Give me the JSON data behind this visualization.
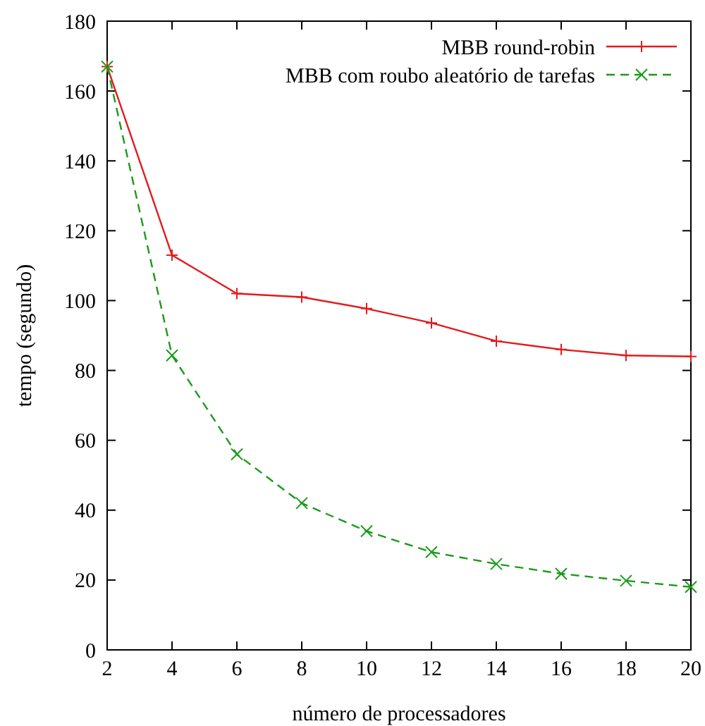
{
  "chart_data": {
    "type": "line",
    "xlabel": "número de processadores",
    "ylabel": "tempo (segundo)",
    "x": [
      2,
      4,
      6,
      8,
      10,
      12,
      14,
      16,
      18,
      20
    ],
    "series": [
      {
        "name": "MBB round-robin",
        "color": "#e41a1c",
        "marker": "cross",
        "line_style": "solid",
        "values": [
          167,
          113,
          102,
          101,
          97.7,
          93.6,
          88.4,
          86,
          84.3,
          84
        ]
      },
      {
        "name": "MBB com roubo aleatório de tarefas",
        "color": "#1a9a1a",
        "marker": "x",
        "line_style": "dashed",
        "values": [
          167,
          84.3,
          56,
          42,
          34,
          28,
          24.6,
          21.8,
          19.8,
          18
        ]
      }
    ],
    "xlim": [
      2,
      20
    ],
    "xticks": [
      2,
      4,
      6,
      8,
      10,
      12,
      14,
      16,
      18,
      20
    ],
    "ylim": [
      0,
      180
    ],
    "yticks": [
      0,
      20,
      40,
      60,
      80,
      100,
      120,
      140,
      160,
      180
    ],
    "grid": false,
    "legend": "top right"
  }
}
